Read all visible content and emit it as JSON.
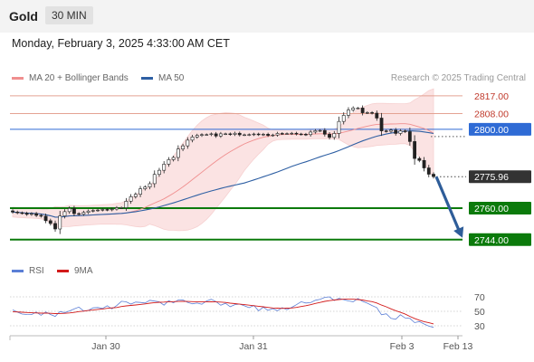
{
  "header": {
    "instrument": "Gold",
    "timeframe": "30 MIN"
  },
  "datetime": "Monday, February 3, 2025 4:33:00 AM CET",
  "legend": {
    "bollinger": {
      "label": "MA 20 + Bollinger Bands",
      "color": "#f08f8f"
    },
    "ma50": {
      "label": "MA 50",
      "color": "#2e5fa3"
    }
  },
  "credit": "Research © 2025 Trading Central",
  "rsi_legend": {
    "rsi": {
      "label": "RSI",
      "color": "#5b7fd6"
    },
    "ma": {
      "label": "9MA",
      "color": "#d21a1a"
    }
  },
  "chart_data": [
    {
      "type": "candlestick",
      "ylim": [
        2737,
        2822
      ],
      "x_ticks": [
        "Jan 30",
        "Jan 31",
        "Feb 3",
        "Feb 13"
      ],
      "closes": [
        2758.0,
        2757.6,
        2757.4,
        2756.8,
        2757.2,
        2756.3,
        2755.9,
        2753.6,
        2752.2,
        2749.4,
        2756.0,
        2758.2,
        2759.8,
        2757.2,
        2756.9,
        2757.8,
        2758.5,
        2758.8,
        2759.0,
        2759.3,
        2759.1,
        2759.5,
        2760.2,
        2760.2,
        2763.5,
        2765.8,
        2767.0,
        2769.8,
        2770.7,
        2772.4,
        2777.1,
        2779.2,
        2782.3,
        2784.6,
        2785.7,
        2790.0,
        2791.6,
        2794.5,
        2796.1,
        2796.9,
        2797.3,
        2797.3,
        2797.7,
        2796.6,
        2797.7,
        2797.7,
        2797.4,
        2798.0,
        2797.2,
        2797.2,
        2797.3,
        2797.6,
        2797.3,
        2797.5,
        2796.9,
        2797.1,
        2797.9,
        2797.8,
        2797.8,
        2798.0,
        2797.6,
        2797.5,
        2797.3,
        2798.6,
        2799.3,
        2799.4,
        2797.5,
        2795.9,
        2797.9,
        2804.0,
        2807.1,
        2809.8,
        2810.8,
        2810.8,
        2808.4,
        2808.5,
        2808.2,
        2805.7,
        2799.2,
        2799.0,
        2799.6,
        2797.9,
        2799.2,
        2798.8,
        2793.8,
        2785.2,
        2784.2,
        2780.4,
        2777.2,
        2776.0
      ],
      "levels": [
        {
          "value": 2817.0,
          "label": "2817.00",
          "kind": "resistance",
          "color": "#e4a293"
        },
        {
          "value": 2808.0,
          "label": "2808.00",
          "kind": "resistance",
          "color": "#e4a293"
        },
        {
          "value": 2800.0,
          "label": "2800.00",
          "kind": "pivot",
          "color": "#2f6bd5"
        },
        {
          "value": 2775.96,
          "label": "2775.96",
          "kind": "last_price",
          "color": "#333333"
        },
        {
          "value": 2760.0,
          "label": "2760.00",
          "kind": "support",
          "color": "#0b7a0b"
        },
        {
          "value": 2744.0,
          "label": "2744.00",
          "kind": "support",
          "color": "#0b7a0b"
        }
      ],
      "scenario_arrow": {
        "from": 2775.96,
        "to": 2744.0
      }
    },
    {
      "type": "line",
      "name": "RSI",
      "ylim": [
        20,
        90
      ],
      "y_ticks": [
        70,
        50,
        30
      ],
      "series": [
        {
          "name": "RSI",
          "values": [
            52.1,
            48.9,
            46.2,
            45.6,
            45.5,
            49.0,
            44.5,
            49.1,
            45.6,
            43.0,
            49.7,
            48.2,
            50.5,
            53.2,
            55.9,
            50.5,
            51.2,
            54.7,
            55.2,
            54.0,
            57.7,
            53.4,
            57.9,
            63.9,
            63.1,
            60.0,
            62.8,
            62.3,
            61.5,
            65.3,
            64.1,
            63.1,
            58.5,
            64.7,
            61.8,
            65.6,
            65.8,
            62.4,
            60.4,
            61.4,
            59.8,
            64.3,
            66.6,
            63.4,
            58.4,
            61.1,
            56.4,
            59.2,
            60.0,
            57.6,
            55.0,
            58.1,
            50.8,
            55.8,
            51.4,
            53.8,
            50.7,
            55.1,
            52.3,
            55.5,
            59.1,
            63.3,
            61.5,
            62.0,
            65.3,
            66.5,
            69.3,
            70.0,
            65.0,
            67.9,
            66.1,
            64.4,
            63.2,
            67.6,
            63.8,
            61.2,
            58.0,
            55.1,
            45.3,
            46.6,
            40.3,
            39.0,
            45.3,
            40.8,
            40.3,
            34.4,
            35.9,
            32.5,
            29.5,
            27.9
          ]
        },
        {
          "name": "9MA",
          "values": [
            49.3,
            49.1,
            48.8,
            48.4,
            48.0,
            47.8,
            47.5,
            47.6,
            47.2,
            46.9,
            47.0,
            47.3,
            47.8,
            48.5,
            49.6,
            50.3,
            51.1,
            51.8,
            52.6,
            53.3,
            54.1,
            54.7,
            55.3,
            56.6,
            57.5,
            58.1,
            58.7,
            59.5,
            60.3,
            61.2,
            62.0,
            62.5,
            62.8,
            63.2,
            63.4,
            63.6,
            63.7,
            63.6,
            63.4,
            63.3,
            63.3,
            63.2,
            63.1,
            63.0,
            62.7,
            62.2,
            61.3,
            60.6,
            59.9,
            59.3,
            58.5,
            57.8,
            57.0,
            56.2,
            55.4,
            54.6,
            54.4,
            54.0,
            54.4,
            54.6,
            55.4,
            56.6,
            57.8,
            59.1,
            60.9,
            62.3,
            63.8,
            64.8,
            65.6,
            66.3,
            66.8,
            66.8,
            66.8,
            66.3,
            65.6,
            64.3,
            63.4,
            61.5,
            58.6,
            56.2,
            53.4,
            50.9,
            48.6,
            46.1,
            43.0,
            40.1,
            37.8,
            35.8,
            34.2,
            32.6
          ]
        }
      ]
    }
  ]
}
